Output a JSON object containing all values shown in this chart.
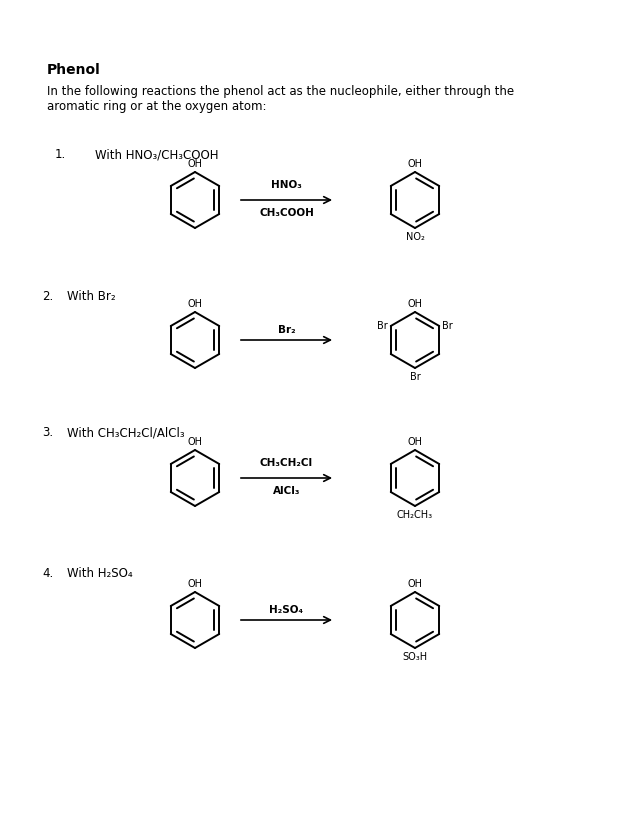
{
  "title": "Phenol",
  "intro_text": "In the following reactions the phenol act as the nucleophile, either through the\naromatic ring or at the oxygen atom:",
  "background_color": "#ffffff",
  "reactions": [
    {
      "number": "1.",
      "label": "With HNO₃/CH₃COOH",
      "reagent_line1": "HNO₃",
      "reagent_line2": "CH₃COOH",
      "product_sub_top": "OH",
      "product_sub_bottom": "NO₂",
      "product_sub_right": null,
      "product_sub_left": null,
      "num_indent": 0.55,
      "label_indent": 0.95
    },
    {
      "number": "2.",
      "label": "With Br₂",
      "reagent_line1": "Br₂",
      "reagent_line2": null,
      "product_sub_top": "OH",
      "product_sub_bottom": "Br",
      "product_sub_right": "Br",
      "product_sub_left": "Br",
      "num_indent": 0.42,
      "label_indent": 0.82
    },
    {
      "number": "3.",
      "label": "With CH₃CH₂Cl/AlCl₃",
      "reagent_line1": "CH₃CH₂Cl",
      "reagent_line2": "AlCl₃",
      "product_sub_top": "OH",
      "product_sub_bottom": "CH₂CH₃",
      "product_sub_right": null,
      "product_sub_left": null,
      "num_indent": 0.42,
      "label_indent": 0.75
    },
    {
      "number": "4.",
      "label": "With H₂SO₄",
      "reagent_line1": "H₂SO₄",
      "reagent_line2": null,
      "product_sub_top": "OH",
      "product_sub_bottom": "SO₃H",
      "product_sub_right": null,
      "product_sub_left": null,
      "num_indent": 0.42,
      "label_indent": 0.75
    }
  ]
}
